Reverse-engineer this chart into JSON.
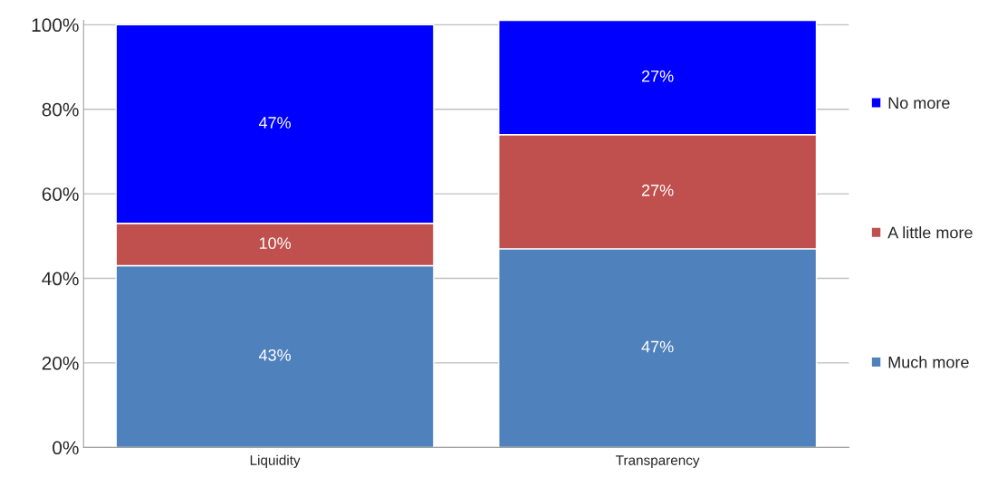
{
  "chart_data": {
    "type": "bar",
    "stacked": true,
    "categories": [
      "Liquidity",
      "Transparency"
    ],
    "series": [
      {
        "name": "Much more",
        "color": "#4f81bd",
        "values": [
          43,
          47
        ],
        "value_labels": [
          "43%",
          "47%"
        ]
      },
      {
        "name": "A little more",
        "color": "#c0504d",
        "values": [
          10,
          27
        ],
        "value_labels": [
          "10%",
          "27%"
        ]
      },
      {
        "name": "No more",
        "color": "#0000ff",
        "values": [
          47,
          27
        ],
        "value_labels": [
          "47%",
          "27%"
        ]
      }
    ],
    "ylim": [
      0,
      101
    ],
    "yticks": [
      {
        "value": 0,
        "label": "0%"
      },
      {
        "value": 20,
        "label": "20%"
      },
      {
        "value": 40,
        "label": "40%"
      },
      {
        "value": 60,
        "label": "60%"
      },
      {
        "value": 80,
        "label": "80%"
      },
      {
        "value": 100,
        "label": "100%"
      }
    ],
    "grid": "y",
    "legend": "right"
  }
}
